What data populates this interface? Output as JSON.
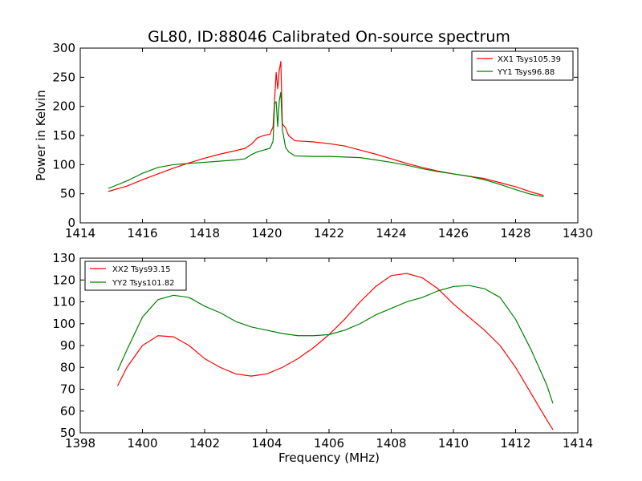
{
  "figure": {
    "title": "GL80, ID:88046 Calibrated On-source spectrum",
    "xlabel": "Frequency (MHz)"
  },
  "chart_data": [
    {
      "type": "line",
      "title": "GL80, ID:88046 Calibrated On-source spectrum",
      "xlabel": "",
      "ylabel": "Power in Kelvin",
      "xlim": [
        1414,
        1430
      ],
      "ylim": [
        0,
        300
      ],
      "xticks": [
        "1414",
        "1416",
        "1418",
        "1420",
        "1422",
        "1424",
        "1426",
        "1428",
        "1430"
      ],
      "yticks": [
        "0",
        "50",
        "100",
        "150",
        "200",
        "250",
        "300"
      ],
      "legend_position": "top-right",
      "grid": false,
      "series": [
        {
          "name": "XX1 Tsys105.39",
          "color": "#ff0000",
          "points": [
            [
              1414.9,
              54
            ],
            [
              1415.5,
              63
            ],
            [
              1416.0,
              74
            ],
            [
              1416.5,
              84
            ],
            [
              1417.0,
              94
            ],
            [
              1417.5,
              103
            ],
            [
              1418.0,
              111
            ],
            [
              1418.5,
              118
            ],
            [
              1419.0,
              124
            ],
            [
              1419.3,
              128
            ],
            [
              1419.5,
              135
            ],
            [
              1419.7,
              146
            ],
            [
              1419.9,
              150
            ],
            [
              1420.1,
              152
            ],
            [
              1420.2,
              165
            ],
            [
              1420.3,
              258
            ],
            [
              1420.35,
              230
            ],
            [
              1420.4,
              262
            ],
            [
              1420.45,
              277
            ],
            [
              1420.5,
              170
            ],
            [
              1420.6,
              163
            ],
            [
              1420.7,
              150
            ],
            [
              1420.9,
              141
            ],
            [
              1421.5,
              139
            ],
            [
              1422.0,
              136
            ],
            [
              1422.5,
              132
            ],
            [
              1423.0,
              125
            ],
            [
              1423.5,
              118
            ],
            [
              1424.0,
              110
            ],
            [
              1424.5,
              102
            ],
            [
              1425.0,
              95
            ],
            [
              1425.5,
              89
            ],
            [
              1426.0,
              84
            ],
            [
              1426.5,
              80
            ],
            [
              1427.0,
              76
            ],
            [
              1427.5,
              69
            ],
            [
              1428.0,
              62
            ],
            [
              1428.5,
              53
            ],
            [
              1428.9,
              47
            ]
          ]
        },
        {
          "name": "YY1 Tsys96.88",
          "color": "#008000",
          "points": [
            [
              1414.9,
              59
            ],
            [
              1415.5,
              72
            ],
            [
              1416.0,
              85
            ],
            [
              1416.5,
              95
            ],
            [
              1417.0,
              100
            ],
            [
              1417.5,
              102
            ],
            [
              1418.0,
              104
            ],
            [
              1418.5,
              106
            ],
            [
              1419.0,
              108
            ],
            [
              1419.3,
              110
            ],
            [
              1419.5,
              117
            ],
            [
              1419.7,
              122
            ],
            [
              1419.9,
              125
            ],
            [
              1420.1,
              128
            ],
            [
              1420.2,
              140
            ],
            [
              1420.25,
              205
            ],
            [
              1420.3,
              208
            ],
            [
              1420.35,
              165
            ],
            [
              1420.4,
              210
            ],
            [
              1420.45,
              224
            ],
            [
              1420.5,
              160
            ],
            [
              1420.6,
              130
            ],
            [
              1420.7,
              122
            ],
            [
              1420.9,
              115
            ],
            [
              1421.5,
              114
            ],
            [
              1422.0,
              114
            ],
            [
              1422.5,
              113
            ],
            [
              1423.0,
              112
            ],
            [
              1423.5,
              108
            ],
            [
              1424.0,
              104
            ],
            [
              1424.5,
              99
            ],
            [
              1425.0,
              93
            ],
            [
              1425.5,
              88
            ],
            [
              1426.0,
              84
            ],
            [
              1426.5,
              80
            ],
            [
              1427.0,
              74
            ],
            [
              1427.5,
              66
            ],
            [
              1428.0,
              57
            ],
            [
              1428.5,
              49
            ],
            [
              1428.9,
              45
            ]
          ]
        }
      ]
    },
    {
      "type": "line",
      "title": "",
      "xlabel": "Frequency (MHz)",
      "ylabel": "",
      "xlim": [
        1398,
        1414
      ],
      "ylim": [
        50,
        130
      ],
      "xticks": [
        "1398",
        "1400",
        "1402",
        "1404",
        "1406",
        "1408",
        "1410",
        "1412",
        "1414"
      ],
      "yticks": [
        "50",
        "60",
        "70",
        "80",
        "90",
        "100",
        "110",
        "120",
        "130"
      ],
      "legend_position": "top-left",
      "grid": false,
      "series": [
        {
          "name": "XX2 Tsys93.15",
          "color": "#ff0000",
          "points": [
            [
              1399.2,
              71.5
            ],
            [
              1399.5,
              80
            ],
            [
              1400.0,
              90
            ],
            [
              1400.5,
              94.5
            ],
            [
              1401.0,
              94
            ],
            [
              1401.5,
              90
            ],
            [
              1402.0,
              84
            ],
            [
              1402.5,
              80
            ],
            [
              1403.0,
              77
            ],
            [
              1403.5,
              76
            ],
            [
              1404.0,
              77
            ],
            [
              1404.5,
              80
            ],
            [
              1405.0,
              84
            ],
            [
              1405.5,
              89
            ],
            [
              1406.0,
              95
            ],
            [
              1406.5,
              102
            ],
            [
              1407.0,
              110
            ],
            [
              1407.5,
              117
            ],
            [
              1408.0,
              122
            ],
            [
              1408.5,
              123
            ],
            [
              1409.0,
              121
            ],
            [
              1409.5,
              116
            ],
            [
              1410.0,
              109
            ],
            [
              1410.5,
              103
            ],
            [
              1411.0,
              97
            ],
            [
              1411.5,
              90
            ],
            [
              1412.0,
              80
            ],
            [
              1412.5,
              68
            ],
            [
              1413.0,
              56
            ],
            [
              1413.2,
              51.5
            ]
          ]
        },
        {
          "name": "YY2 Tsys101.82",
          "color": "#008000",
          "points": [
            [
              1399.2,
              78.5
            ],
            [
              1399.5,
              88
            ],
            [
              1400.0,
              103
            ],
            [
              1400.5,
              111
            ],
            [
              1401.0,
              113
            ],
            [
              1401.5,
              112
            ],
            [
              1402.0,
              108
            ],
            [
              1402.5,
              105
            ],
            [
              1403.0,
              101
            ],
            [
              1403.5,
              98.5
            ],
            [
              1404.0,
              97
            ],
            [
              1404.5,
              95.5
            ],
            [
              1405.0,
              94.5
            ],
            [
              1405.5,
              94.5
            ],
            [
              1406.0,
              95
            ],
            [
              1406.5,
              97
            ],
            [
              1407.0,
              100
            ],
            [
              1407.5,
              104
            ],
            [
              1408.0,
              107
            ],
            [
              1408.5,
              110
            ],
            [
              1409.0,
              112
            ],
            [
              1409.5,
              115
            ],
            [
              1410.0,
              117
            ],
            [
              1410.5,
              117.5
            ],
            [
              1411.0,
              116
            ],
            [
              1411.5,
              112
            ],
            [
              1412.0,
              102
            ],
            [
              1412.5,
              88
            ],
            [
              1413.0,
              72
            ],
            [
              1413.2,
              63.5
            ]
          ]
        }
      ]
    }
  ]
}
